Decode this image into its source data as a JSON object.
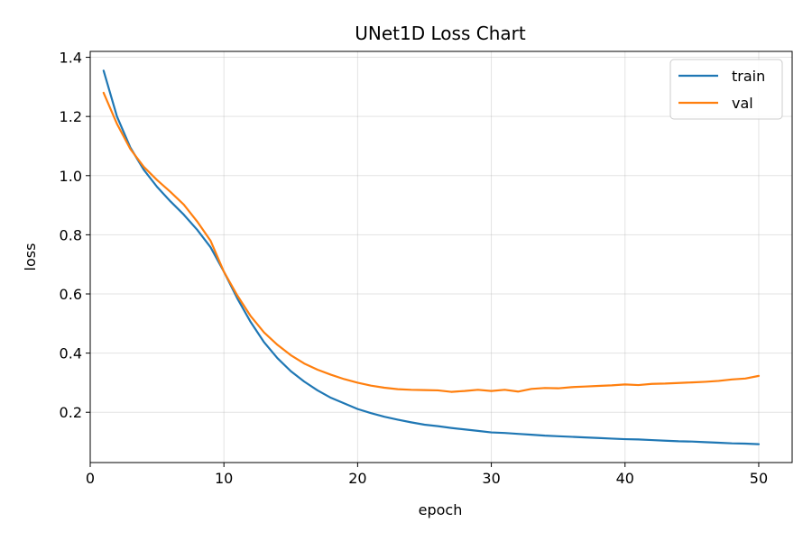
{
  "chart_data": {
    "type": "line",
    "title": "UNet1D Loss Chart",
    "xlabel": "epoch",
    "ylabel": "loss",
    "xlim": [
      0,
      52.5
    ],
    "ylim": [
      0.03,
      1.42
    ],
    "x_ticks": [
      0,
      10,
      20,
      30,
      40,
      50
    ],
    "x_tick_labels": [
      "0",
      "10",
      "20",
      "30",
      "40",
      "50"
    ],
    "y_ticks": [
      0.2,
      0.4,
      0.6,
      0.8,
      1.0,
      1.2,
      1.4
    ],
    "y_tick_labels": [
      "0.2",
      "0.4",
      "0.6",
      "0.8",
      "1.0",
      "1.2",
      "1.4"
    ],
    "grid": true,
    "legend_position": "top-right",
    "x": [
      1,
      2,
      3,
      4,
      5,
      6,
      7,
      8,
      9,
      10,
      11,
      12,
      13,
      14,
      15,
      16,
      17,
      18,
      19,
      20,
      21,
      22,
      23,
      24,
      25,
      26,
      27,
      28,
      29,
      30,
      31,
      32,
      33,
      34,
      35,
      36,
      37,
      38,
      39,
      40,
      41,
      42,
      43,
      44,
      45,
      46,
      47,
      48,
      49,
      50
    ],
    "series": [
      {
        "name": "train",
        "color": "#1f77b4",
        "values": [
          1.355,
          1.2,
          1.095,
          1.02,
          0.962,
          0.913,
          0.868,
          0.817,
          0.758,
          0.675,
          0.585,
          0.505,
          0.437,
          0.383,
          0.339,
          0.304,
          0.274,
          0.249,
          0.23,
          0.211,
          0.197,
          0.185,
          0.175,
          0.166,
          0.158,
          0.153,
          0.147,
          0.142,
          0.137,
          0.132,
          0.13,
          0.127,
          0.124,
          0.121,
          0.119,
          0.117,
          0.115,
          0.113,
          0.111,
          0.109,
          0.108,
          0.106,
          0.104,
          0.102,
          0.101,
          0.099,
          0.097,
          0.095,
          0.094,
          0.092
        ]
      },
      {
        "name": "val",
        "color": "#ff7f0e",
        "values": [
          1.28,
          1.175,
          1.09,
          1.03,
          0.985,
          0.945,
          0.902,
          0.845,
          0.78,
          0.675,
          0.595,
          0.525,
          0.47,
          0.428,
          0.393,
          0.365,
          0.344,
          0.327,
          0.312,
          0.3,
          0.29,
          0.283,
          0.278,
          0.276,
          0.275,
          0.274,
          0.269,
          0.272,
          0.276,
          0.272,
          0.276,
          0.27,
          0.279,
          0.282,
          0.281,
          0.285,
          0.287,
          0.289,
          0.291,
          0.294,
          0.292,
          0.296,
          0.297,
          0.299,
          0.301,
          0.303,
          0.306,
          0.311,
          0.314,
          0.323
        ]
      }
    ]
  }
}
